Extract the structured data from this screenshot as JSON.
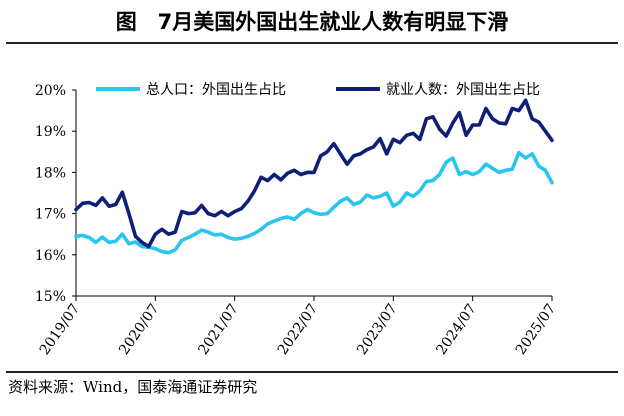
{
  "title": "图　7月美国外国出生就业人数有明显下滑",
  "source": "资料来源：Wind，国泰海通证券研究",
  "chart_data": {
    "type": "line",
    "title": "图　7月美国外国出生就业人数有明显下滑",
    "xlabel": "",
    "ylabel": "",
    "ylim": [
      15,
      20
    ],
    "yticks": [
      15,
      16,
      17,
      18,
      19,
      20
    ],
    "ytick_labels": [
      "15%",
      "16%",
      "17%",
      "18%",
      "19%",
      "20%"
    ],
    "xticks": [
      "2019/07",
      "2020/07",
      "2021/07",
      "2022/07",
      "2023/07",
      "2024/07",
      "2025/07"
    ],
    "grid": false,
    "legend": "top",
    "x": [
      "2019/07",
      "2019/08",
      "2019/09",
      "2019/10",
      "2019/11",
      "2019/12",
      "2020/01",
      "2020/02",
      "2020/03",
      "2020/04",
      "2020/05",
      "2020/06",
      "2020/07",
      "2020/08",
      "2020/09",
      "2020/10",
      "2020/11",
      "2020/12",
      "2021/01",
      "2021/02",
      "2021/03",
      "2021/04",
      "2021/05",
      "2021/06",
      "2021/07",
      "2021/08",
      "2021/09",
      "2021/10",
      "2021/11",
      "2021/12",
      "2022/01",
      "2022/02",
      "2022/03",
      "2022/04",
      "2022/05",
      "2022/06",
      "2022/07",
      "2022/08",
      "2022/09",
      "2022/10",
      "2022/11",
      "2022/12",
      "2023/01",
      "2023/02",
      "2023/03",
      "2023/04",
      "2023/05",
      "2023/06",
      "2023/07",
      "2023/08",
      "2023/09",
      "2023/10",
      "2023/11",
      "2023/12",
      "2024/01",
      "2024/02",
      "2024/03",
      "2024/04",
      "2024/05",
      "2024/06",
      "2024/07",
      "2024/08",
      "2024/09",
      "2024/10",
      "2024/11",
      "2024/12",
      "2025/01",
      "2025/02",
      "2025/03",
      "2025/04",
      "2025/05",
      "2025/06",
      "2025/07"
    ],
    "series": [
      {
        "name": "总人口：外国出生占比",
        "color": "#29c5f0",
        "values": [
          16.45,
          16.47,
          16.42,
          16.3,
          16.43,
          16.3,
          16.33,
          16.5,
          16.27,
          16.31,
          16.2,
          16.18,
          16.15,
          16.08,
          16.05,
          16.12,
          16.35,
          16.42,
          16.5,
          16.6,
          16.55,
          16.48,
          16.5,
          16.42,
          16.38,
          16.4,
          16.45,
          16.52,
          16.62,
          16.75,
          16.82,
          16.88,
          16.92,
          16.86,
          17.0,
          17.1,
          17.02,
          16.98,
          17.0,
          17.15,
          17.3,
          17.38,
          17.22,
          17.28,
          17.45,
          17.38,
          17.42,
          17.5,
          17.18,
          17.28,
          17.5,
          17.42,
          17.55,
          17.78,
          17.8,
          17.95,
          18.25,
          18.35,
          17.95,
          18.02,
          17.95,
          18.02,
          18.2,
          18.1,
          18.0,
          18.05,
          18.08,
          18.48,
          18.35,
          18.45,
          18.15,
          18.05,
          17.75
        ]
      },
      {
        "name": "就业人数：外国出生占比",
        "color": "#0f1f78",
        "values": [
          17.1,
          17.25,
          17.27,
          17.2,
          17.38,
          17.18,
          17.22,
          17.52,
          17.0,
          16.45,
          16.3,
          16.2,
          16.5,
          16.62,
          16.5,
          16.55,
          17.05,
          17.0,
          17.02,
          17.2,
          17.0,
          16.95,
          17.05,
          16.95,
          17.05,
          17.12,
          17.3,
          17.55,
          17.88,
          17.8,
          17.95,
          17.82,
          17.98,
          18.05,
          17.95,
          18.0,
          18.0,
          18.4,
          18.5,
          18.7,
          18.45,
          18.2,
          18.4,
          18.45,
          18.55,
          18.62,
          18.82,
          18.45,
          18.8,
          18.72,
          18.9,
          18.95,
          18.8,
          19.3,
          19.35,
          19.05,
          18.88,
          19.2,
          19.45,
          18.9,
          19.15,
          19.15,
          19.55,
          19.3,
          19.2,
          19.18,
          19.55,
          19.5,
          19.75,
          19.3,
          19.22,
          19.0,
          18.78
        ]
      }
    ]
  }
}
